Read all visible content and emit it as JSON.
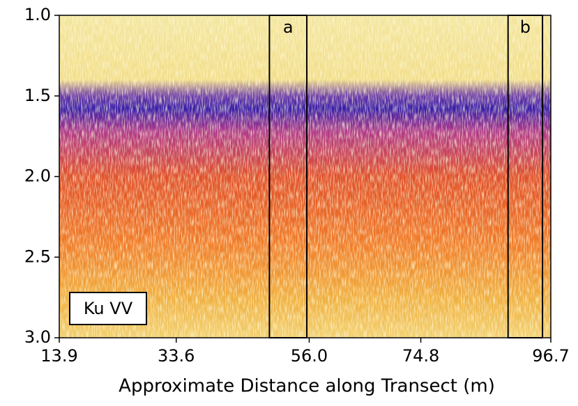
{
  "chart_data": {
    "type": "heatmap",
    "xlabel": "Approximate Distance along Transect (m)",
    "xlim": [
      13.9,
      96.7
    ],
    "xticks": [
      13.9,
      33.6,
      {
        "value": 56.0,
        "label": "56.0"
      },
      74.8,
      96.7
    ],
    "ylim": [
      1.0,
      3.0
    ],
    "yticks": [
      {
        "value": 1.0,
        "label": "1.0"
      },
      1.5,
      {
        "value": 2.0,
        "label": "2.0"
      },
      2.5,
      {
        "value": 3.0,
        "label": "3.0"
      }
    ],
    "annotation": "Ku VV",
    "regions": [
      {
        "label": "a",
        "x": [
          49.3,
          55.6
        ]
      },
      {
        "label": "b",
        "x": [
          89.5,
          95.3
        ]
      }
    ]
  }
}
